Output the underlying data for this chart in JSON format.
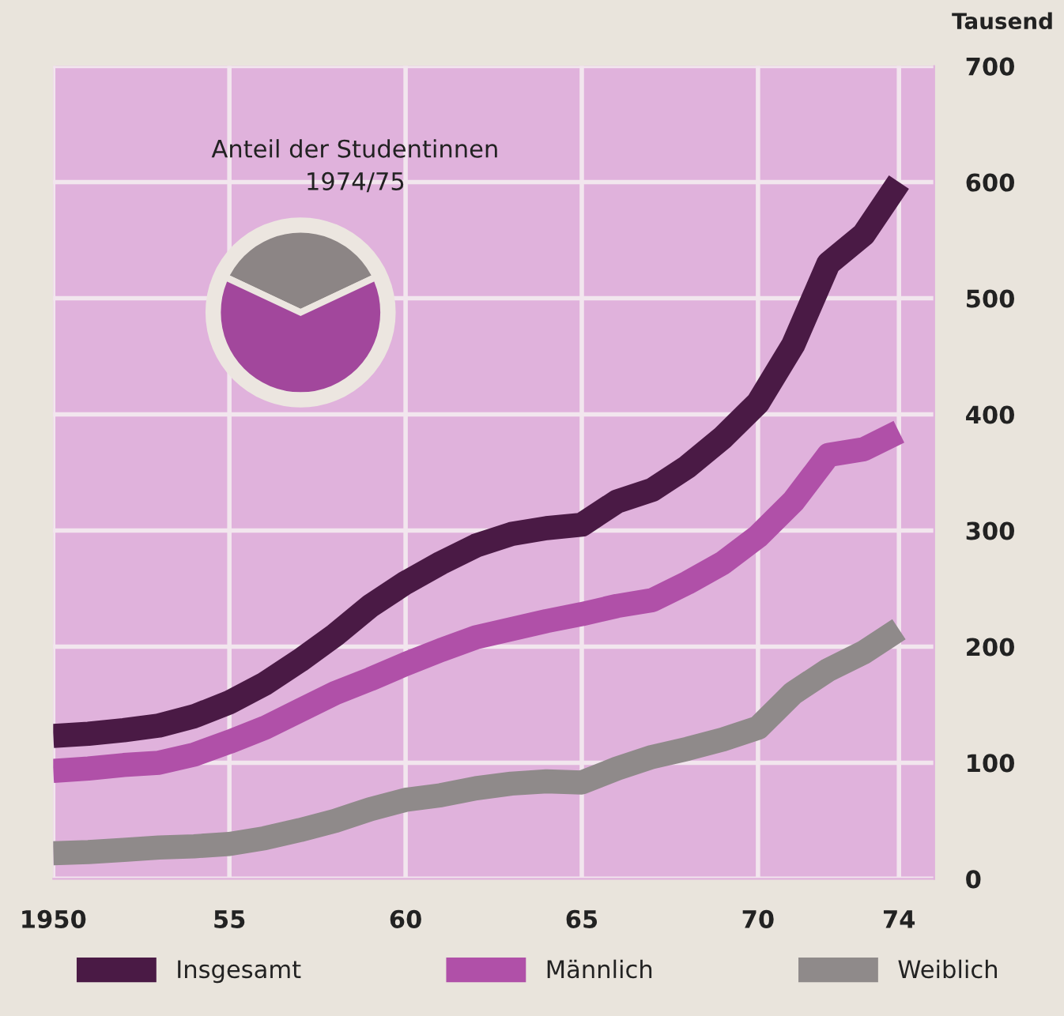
{
  "chart_data": [
    {
      "type": "line",
      "ylabel": "Tausend",
      "x": [
        1950,
        1951,
        1952,
        1953,
        1954,
        1955,
        1956,
        1957,
        1958,
        1959,
        1960,
        1961,
        1962,
        1963,
        1964,
        1965,
        1966,
        1967,
        1968,
        1969,
        1970,
        1971,
        1972,
        1973,
        1974
      ],
      "series": [
        {
          "name": "Insgesamt",
          "color": "#4a1a45",
          "values": [
            123,
            125,
            128,
            132,
            140,
            152,
            168,
            188,
            210,
            235,
            255,
            272,
            287,
            297,
            302,
            305,
            325,
            335,
            355,
            380,
            410,
            460,
            530,
            555,
            600
          ]
        },
        {
          "name": "Männlich",
          "color": "#b050a8",
          "values": [
            93,
            95,
            98,
            100,
            107,
            118,
            130,
            145,
            160,
            172,
            185,
            197,
            208,
            215,
            222,
            228,
            235,
            240,
            255,
            272,
            295,
            325,
            365,
            370,
            385
          ]
        },
        {
          "name": "Weiblich",
          "color": "#8f8a8a",
          "values": [
            22,
            23,
            25,
            27,
            28,
            30,
            35,
            42,
            50,
            60,
            68,
            72,
            78,
            82,
            84,
            83,
            95,
            105,
            112,
            120,
            130,
            160,
            180,
            195,
            215
          ]
        }
      ],
      "xlim": [
        1950,
        1975
      ],
      "xticks": [
        1950,
        {
          "value": 1955,
          "label": "55"
        },
        {
          "value": 1960,
          "label": "60"
        },
        {
          "value": 1965,
          "label": "65"
        },
        {
          "value": 1970,
          "label": "70"
        },
        {
          "value": 1974,
          "label": "74"
        }
      ],
      "ylim": [
        0,
        700
      ],
      "yticks": [
        0,
        100,
        200,
        300,
        400,
        500,
        600,
        700
      ],
      "grid": true,
      "legend": "bottom",
      "line_style": "solid",
      "marker": "none"
    },
    {
      "type": "pie",
      "title": "Anteil der Studentinnen\n1974/75",
      "categories": [
        null,
        null
      ],
      "values": [
        36,
        64
      ],
      "colors": [
        "#8c8585",
        "#a2479c"
      ]
    }
  ]
}
